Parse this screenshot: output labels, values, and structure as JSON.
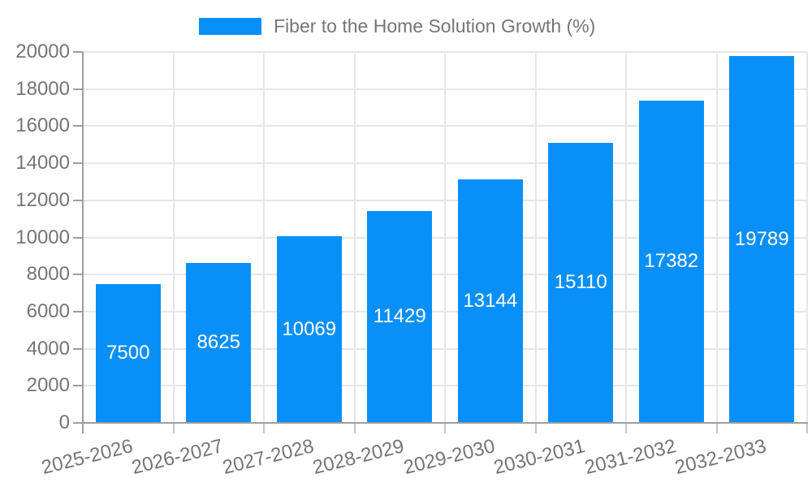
{
  "legend": {
    "label": "Fiber to the Home Solution Growth (%)"
  },
  "chart_data": {
    "type": "bar",
    "title": "Fiber to the Home Solution Growth (%)",
    "categories": [
      "2025-2026",
      "2026-2027",
      "2027-2028",
      "2028-2029",
      "2029-2030",
      "2030-2031",
      "2031-2032",
      "2032-2033"
    ],
    "values": [
      7500,
      8625,
      10069,
      11429,
      13144,
      15110,
      17382,
      19789
    ],
    "xlabel": "",
    "ylabel": "",
    "ylim": [
      0,
      20000
    ],
    "yticks": [
      0,
      2000,
      4000,
      6000,
      8000,
      10000,
      12000,
      14000,
      16000,
      18000,
      20000
    ],
    "grid": true,
    "legend_position": "top-center",
    "bar_label_position": "inside-center",
    "x_tick_rotation_deg": -14,
    "colors": {
      "bar": "#0990f8",
      "bar_label": "#ffffff",
      "axis_text": "#757575",
      "axis_line": "#9e9e9e",
      "gridline": "#e6e6e6",
      "boundary_tick": "#c4c4c4"
    }
  }
}
